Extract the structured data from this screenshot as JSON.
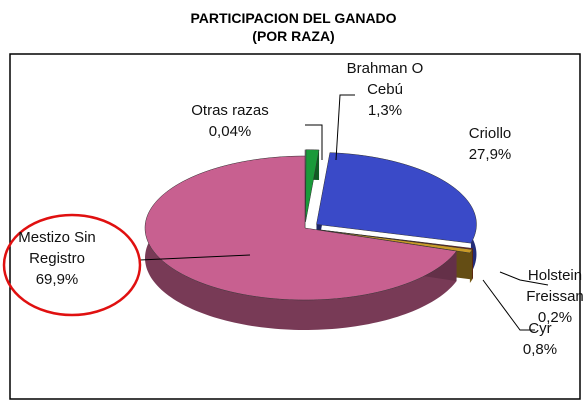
{
  "chart_data": {
    "type": "pie",
    "title": "PARTICIPACION DEL GANADO",
    "subtitle": "(POR RAZA)",
    "categories": [
      "Otras razas",
      "Brahman O Cebú",
      "Criollo",
      "Holstein Freissan",
      "Cyr",
      "Mestizo Sin Registro"
    ],
    "values": [
      0.04,
      1.3,
      27.9,
      0.2,
      0.8,
      69.9
    ],
    "value_labels": [
      "0,04%",
      "1,3%",
      "27,9%",
      "0,2%",
      "0,8%",
      "69,9%"
    ],
    "colors": [
      "#b0b0e8",
      "#1a9a3a",
      "#3a4ac8",
      "#a01818",
      "#c89a28",
      "#c86090"
    ]
  }
}
